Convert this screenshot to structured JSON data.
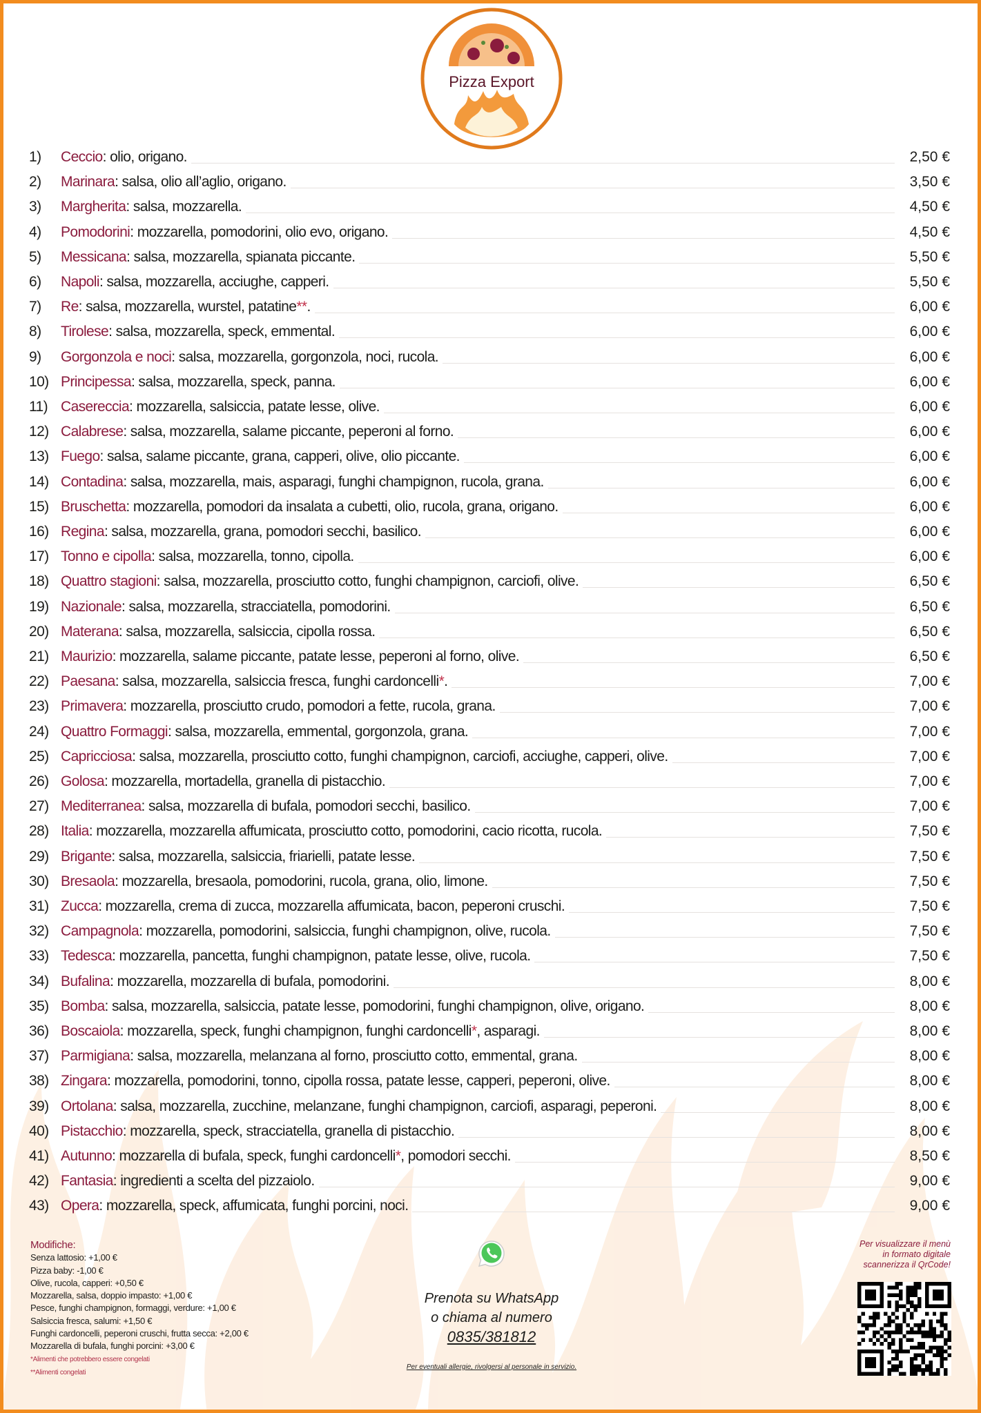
{
  "brand": {
    "name": "Pizza Export",
    "accent_color": "#f28c1e",
    "name_color": "#8a1b3d"
  },
  "menu": [
    {
      "num": "1)",
      "name": "Ceccio",
      "desc": ": olio, origano.",
      "price": "2,50 €"
    },
    {
      "num": "2)",
      "name": "Marinara",
      "desc": ": salsa, olio all’aglio, origano.",
      "price": "3,50 €"
    },
    {
      "num": "3)",
      "name": "Margherita",
      "desc": ": salsa, mozzarella.",
      "price": "4,50 €"
    },
    {
      "num": "4)",
      "name": "Pomodorini",
      "desc": ": mozzarella, pomodorini, olio evo, origano.",
      "price": "4,50 €"
    },
    {
      "num": "5)",
      "name": "Messicana",
      "desc": ": salsa, mozzarella, spianata piccante.",
      "price": "5,50 €"
    },
    {
      "num": "6)",
      "name": "Napoli",
      "desc": ": salsa, mozzarella, acciughe, capperi.",
      "price": "5,50 €"
    },
    {
      "num": "7)",
      "name": "Re",
      "desc": ": salsa, mozzarella, wurstel, patatine**.",
      "price": "6,00 €"
    },
    {
      "num": "8)",
      "name": "Tirolese",
      "desc": ": salsa, mozzarella, speck, emmental.",
      "price": "6,00 €"
    },
    {
      "num": "9)",
      "name": "Gorgonzola e noci",
      "desc": ": salsa, mozzarella, gorgonzola, noci, rucola.",
      "price": "6,00 €"
    },
    {
      "num": "10)",
      "name": "Principessa",
      "desc": ": salsa, mozzarella, speck, panna.",
      "price": "6,00 €"
    },
    {
      "num": "11)",
      "name": "Casereccia",
      "desc": ": mozzarella, salsiccia, patate lesse, olive.",
      "price": "6,00 €"
    },
    {
      "num": "12)",
      "name": "Calabrese",
      "desc": ": salsa, mozzarella, salame piccante, peperoni al forno.",
      "price": "6,00 €"
    },
    {
      "num": "13)",
      "name": "Fuego",
      "desc": ": salsa, salame piccante, grana, capperi, olive, olio piccante.",
      "price": "6,00 €"
    },
    {
      "num": "14)",
      "name": "Contadina",
      "desc": ": salsa, mozzarella, mais, asparagi, funghi champignon, rucola, grana.",
      "price": "6,00 €"
    },
    {
      "num": "15)",
      "name": "Bruschetta",
      "desc": ": mozzarella, pomodori da insalata a cubetti, olio, rucola, grana, origano.",
      "price": "6,00 €"
    },
    {
      "num": "16)",
      "name": "Regina",
      "desc": ": salsa, mozzarella, grana, pomodori secchi, basilico.",
      "price": "6,00 €"
    },
    {
      "num": "17)",
      "name": "Tonno e cipolla",
      "desc": ": salsa, mozzarella, tonno, cipolla.",
      "price": "6,00 €"
    },
    {
      "num": "18)",
      "name": "Quattro stagioni",
      "desc": ": salsa, mozzarella, prosciutto cotto, funghi champignon, carciofi, olive.",
      "price": "6,50 €"
    },
    {
      "num": "19)",
      "name": "Nazionale",
      "desc": ": salsa, mozzarella, stracciatella, pomodorini.",
      "price": "6,50 €"
    },
    {
      "num": "20)",
      "name": "Materana",
      "desc": ": salsa, mozzarella, salsiccia, cipolla rossa.",
      "price": "6,50 €"
    },
    {
      "num": "21)",
      "name": "Maurizio",
      "desc": ": mozzarella, salame piccante, patate lesse, peperoni al forno, olive.",
      "price": "6,50 €"
    },
    {
      "num": "22)",
      "name": "Paesana",
      "desc": ": salsa, mozzarella, salsiccia fresca, funghi cardoncelli*.",
      "price": "7,00 €"
    },
    {
      "num": "23)",
      "name": "Primavera",
      "desc": ": mozzarella, prosciutto crudo, pomodori a fette, rucola, grana.",
      "price": "7,00 €"
    },
    {
      "num": "24)",
      "name": "Quattro Formaggi",
      "desc": ": salsa, mozzarella, emmental, gorgonzola, grana.",
      "price": "7,00 €"
    },
    {
      "num": "25)",
      "name": "Capricciosa",
      "desc": ":  salsa, mozzarella, prosciutto cotto, funghi champignon, carciofi, acciughe, capperi, olive.",
      "price": "7,00 €"
    },
    {
      "num": "26)",
      "name": "Golosa",
      "desc": ": mozzarella, mortadella, granella di pistacchio.",
      "price": "7,00 €"
    },
    {
      "num": "27)",
      "name": "Mediterranea",
      "desc": ": salsa, mozzarella di bufala, pomodori secchi, basilico.",
      "price": "7,00 €"
    },
    {
      "num": "28)",
      "name": "Italia",
      "desc": ": mozzarella, mozzarella affumicata, prosciutto cotto, pomodorini, cacio ricotta, rucola.",
      "price": "7,50 €"
    },
    {
      "num": "29)",
      "name": "Brigante",
      "desc": ":  salsa, mozzarella, salsiccia, friarielli, patate lesse.",
      "price": "7,50 €"
    },
    {
      "num": "30)",
      "name": "Bresaola",
      "desc": ": mozzarella, bresaola, pomodorini, rucola, grana, olio, limone.",
      "price": "7,50 €"
    },
    {
      "num": "31)",
      "name": "Zucca",
      "desc": ":  mozzarella, crema di zucca, mozzarella affumicata, bacon, peperoni cruschi.",
      "price": "7,50 €"
    },
    {
      "num": "32)",
      "name": "Campagnola",
      "desc": ": mozzarella, pomodorini, salsiccia, funghi champignon, olive, rucola.",
      "price": "7,50 €"
    },
    {
      "num": "33)",
      "name": "Tedesca",
      "desc": ": mozzarella, pancetta, funghi champignon, patate lesse, olive, rucola.",
      "price": "7,50 €"
    },
    {
      "num": "34)",
      "name": "Bufalina",
      "desc": ": mozzarella, mozzarella di bufala, pomodorini.",
      "price": "8,00 €"
    },
    {
      "num": "35)",
      "name": "Bomba",
      "desc": ": salsa, mozzarella, salsiccia, patate lesse, pomodorini, funghi champignon, olive, origano.",
      "price": "8,00 €"
    },
    {
      "num": "36)",
      "name": "Boscaiola",
      "desc": ": mozzarella, speck, funghi champignon, funghi cardoncelli*, asparagi.",
      "price": "8,00 €"
    },
    {
      "num": "37)",
      "name": "Parmigiana",
      "desc": ": salsa, mozzarella, melanzana al forno, prosciutto cotto, emmental, grana.",
      "price": "8,00 €"
    },
    {
      "num": "38)",
      "name": "Zingara",
      "desc": ": mozzarella, pomodorini, tonno, cipolla rossa, patate lesse, capperi, peperoni, olive.",
      "price": "8,00 €"
    },
    {
      "num": "39)",
      "name": "Ortolana",
      "desc": ": salsa, mozzarella, zucchine, melanzane, funghi champignon, carciofi, asparagi, peperoni.",
      "price": "8,00 €"
    },
    {
      "num": "40)",
      "name": "Pistacchio",
      "desc": ": mozzarella, speck, stracciatella, granella di pistacchio.",
      "price": "8,00 €"
    },
    {
      "num": "41)",
      "name": "Autunno",
      "desc": ": mozzarella di bufala, speck, funghi cardoncelli*, pomodori secchi.",
      "price": "8,50 €"
    },
    {
      "num": "42)",
      "name": "Fantasia",
      "desc": ": ingredienti a scelta del pizzaiolo.",
      "price": "9,00 €"
    },
    {
      "num": "43)",
      "name": "Opera",
      "desc": ": mozzarella, speck, affumicata, funghi porcini, noci.",
      "price": "9,00 €"
    }
  ],
  "modifiers": {
    "title": "Modifiche:",
    "items": [
      "Senza lattosio: +1,00 €",
      "Pizza baby: -1,00 €",
      "Olive, rucola, capperi: +0,50 €",
      "Mozzarella, salsa, doppio impasto: +1,00 €",
      "Pesce, funghi champignon, formaggi, verdure: +1,00 €",
      "Salsiccia fresca, salumi: +1,50 €",
      "Funghi cardoncelli, peperoni cruschi, frutta secca: +2,00 €",
      "Mozzarella di bufala, funghi porcini: +3,00 €"
    ],
    "notes": [
      "*Alimenti che potrebbero essere congelati",
      "**Alimenti congelati"
    ]
  },
  "contact": {
    "icon": "whatsapp-icon",
    "line1": "Prenota su WhatsApp",
    "line2": "o chiama al numero",
    "phone": "0835/381812",
    "allergy": "Per eventuali allergie, rivolgersi al personale in servizio."
  },
  "qr": {
    "lines": [
      "Per visualizzare il menù",
      "in formato digitale",
      "scannerizza il QrCode!"
    ]
  }
}
